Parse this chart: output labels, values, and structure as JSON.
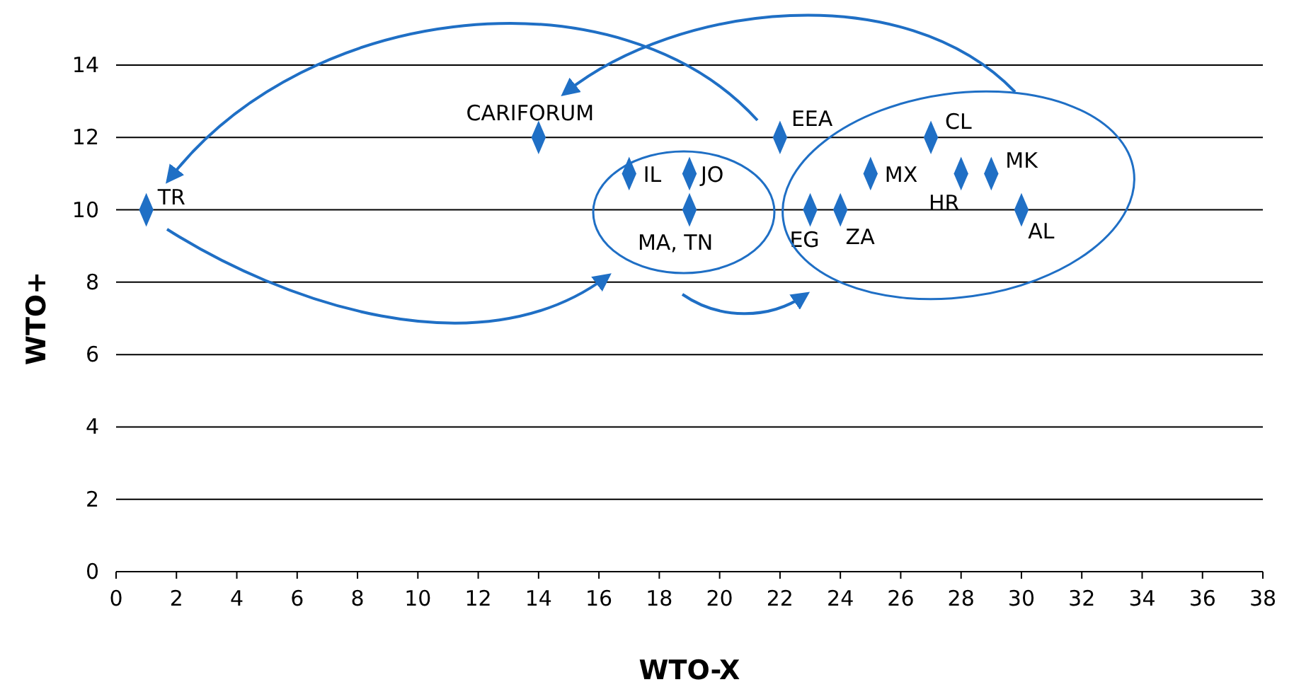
{
  "chart_data": {
    "type": "scatter",
    "xlabel": "WTO-X",
    "ylabel": "WTO+",
    "x": [
      1,
      14,
      22,
      17,
      19,
      19,
      23,
      24,
      25,
      27,
      28,
      29,
      30
    ],
    "values": [
      10,
      12,
      12,
      11,
      11,
      10,
      10,
      10,
      11,
      12,
      11,
      11,
      10
    ],
    "color": "#1f6fc5",
    "marker": "diamond",
    "grid": "y",
    "xlim": [
      0,
      38
    ],
    "xticks": [
      0,
      2,
      4,
      6,
      8,
      10,
      12,
      14,
      16,
      18,
      20,
      22,
      24,
      26,
      28,
      30,
      32,
      34,
      36,
      38
    ],
    "ylim": [
      0,
      14
    ],
    "yticks": [
      0,
      2,
      4,
      6,
      8,
      10,
      12,
      14
    ],
    "annotations": [
      {
        "text": "TR",
        "x": 1,
        "y": 10
      },
      {
        "text": "CARIFORUM",
        "x": 14,
        "y": 12
      },
      {
        "text": "EEA",
        "x": 22,
        "y": 12
      },
      {
        "text": "IL",
        "x": 17,
        "y": 11
      },
      {
        "text": "JO",
        "x": 19,
        "y": 11
      },
      {
        "text": "MA, TN",
        "x": 19,
        "y": 10
      },
      {
        "text": "EG",
        "x": 23,
        "y": 10
      },
      {
        "text": "ZA",
        "x": 24,
        "y": 10
      },
      {
        "text": "MX",
        "x": 25,
        "y": 11
      },
      {
        "text": "CL",
        "x": 27,
        "y": 12
      },
      {
        "text": "HR",
        "x": 28,
        "y": 11
      },
      {
        "text": "MK",
        "x": 29,
        "y": 11
      },
      {
        "text": "AL",
        "x": 30,
        "y": 10
      }
    ]
  }
}
